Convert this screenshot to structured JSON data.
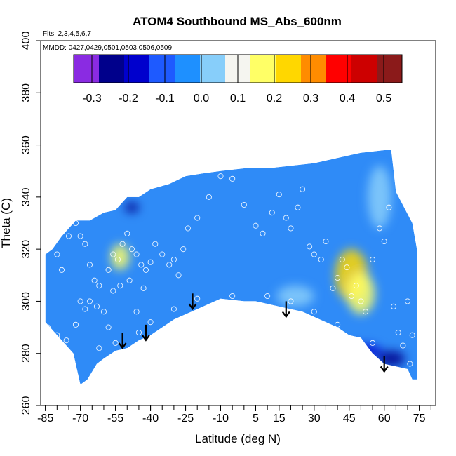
{
  "chart_data": {
    "type": "heatmap",
    "title": "ATOM4 Southbound MS_Abs_600nm",
    "notes": [
      "Flts: 2,3,4,5,6,7",
      "MMDD: 0427,0429,0501,0503,0506,0509"
    ],
    "xlabel": "Latitude (deg N)",
    "ylabel": "Theta (C)",
    "xlim": [
      -87,
      82
    ],
    "ylim": [
      260,
      400
    ],
    "x_ticks": [
      -85,
      -70,
      -55,
      -40,
      -25,
      -10,
      5,
      15,
      30,
      45,
      60,
      75
    ],
    "y_ticks": [
      260,
      280,
      300,
      320,
      340,
      360,
      380,
      400
    ],
    "colorbar": {
      "range": [
        -0.35,
        0.55
      ],
      "ticks": [
        -0.3,
        -0.2,
        -0.1,
        0.0,
        0.1,
        0.2,
        0.3,
        0.4,
        0.5
      ],
      "tick_labels": [
        "-0.3",
        "-0.2",
        "-0.1",
        "0.0",
        "0.1",
        "0.2",
        "0.3",
        "0.4",
        "0.5"
      ],
      "colors": [
        "#8a2be2",
        "#00008b",
        "#0000cd",
        "#1e5aff",
        "#1e90ff",
        "#87cefa",
        "#f5f5f0",
        "#ffff66",
        "#ffd700",
        "#ff8c00",
        "#ff0000",
        "#cd0000",
        "#8b1a1a"
      ]
    },
    "field_background": "#2f8bf7",
    "upper_boundary": [
      [
        -85,
        318
      ],
      [
        -82,
        320
      ],
      [
        -78,
        325
      ],
      [
        -72,
        331
      ],
      [
        -66,
        331
      ],
      [
        -60,
        334
      ],
      [
        -55,
        335
      ],
      [
        -50,
        340
      ],
      [
        -45,
        340
      ],
      [
        -40,
        343
      ],
      [
        -32,
        345
      ],
      [
        -25,
        348
      ],
      [
        -18,
        349
      ],
      [
        -10,
        350
      ],
      [
        0,
        351
      ],
      [
        10,
        351
      ],
      [
        20,
        352
      ],
      [
        30,
        353
      ],
      [
        40,
        355
      ],
      [
        50,
        357
      ],
      [
        60,
        358
      ],
      [
        63,
        358
      ],
      [
        65,
        342
      ],
      [
        72,
        330
      ],
      [
        74,
        320
      ]
    ],
    "lower_boundary": [
      [
        74,
        270
      ],
      [
        72,
        270
      ],
      [
        70,
        274
      ],
      [
        65,
        275
      ],
      [
        60,
        276
      ],
      [
        55,
        280
      ],
      [
        50,
        286
      ],
      [
        45,
        287
      ],
      [
        40,
        290
      ],
      [
        35,
        292
      ],
      [
        30,
        294
      ],
      [
        25,
        296
      ],
      [
        20,
        297
      ],
      [
        15,
        298
      ],
      [
        10,
        299
      ],
      [
        5,
        300
      ],
      [
        0,
        300
      ],
      [
        -10,
        301
      ],
      [
        -15,
        299
      ],
      [
        -20,
        297
      ],
      [
        -25,
        295
      ],
      [
        -30,
        293
      ],
      [
        -35,
        290
      ],
      [
        -40,
        287
      ],
      [
        -45,
        285
      ],
      [
        -50,
        282
      ],
      [
        -55,
        281
      ],
      [
        -60,
        278
      ],
      [
        -63,
        276
      ],
      [
        -67,
        270
      ],
      [
        -70,
        268
      ],
      [
        -73,
        280
      ],
      [
        -78,
        285
      ],
      [
        -85,
        292
      ]
    ],
    "features": [
      {
        "lat": 46,
        "theta": 310,
        "value": 0.25,
        "radius_lat": 7,
        "radius_theta": 10
      },
      {
        "lat": 50,
        "theta": 303,
        "value": 0.14,
        "radius_lat": 6,
        "radius_theta": 8
      },
      {
        "lat": -53,
        "theta": 317,
        "value": 0.18,
        "radius_lat": 4,
        "radius_theta": 5
      },
      {
        "lat": 22,
        "theta": 302,
        "value": 0.04,
        "radius_lat": 8,
        "radius_theta": 4
      },
      {
        "lat": -48,
        "theta": 336,
        "value": -0.25,
        "radius_lat": 3,
        "radius_theta": 2
      },
      {
        "lat": 50,
        "theta": 281,
        "value": -0.18,
        "radius_lat": 9,
        "radius_theta": 2.5
      },
      {
        "lat": 63,
        "theta": 278,
        "value": -0.22,
        "radius_lat": 6,
        "radius_theta": 3
      },
      {
        "lat": 58,
        "theta": 340,
        "value": 0.03,
        "radius_lat": 5,
        "radius_theta": 12
      }
    ],
    "observations": [
      [
        -80,
        318
      ],
      [
        -78,
        312
      ],
      [
        -75,
        325
      ],
      [
        -72,
        330
      ],
      [
        -70,
        325
      ],
      [
        -68,
        322
      ],
      [
        -66,
        314
      ],
      [
        -64,
        308
      ],
      [
        -62,
        306
      ],
      [
        -70,
        300
      ],
      [
        -68,
        297
      ],
      [
        -66,
        300
      ],
      [
        -63,
        298
      ],
      [
        -60,
        296
      ],
      [
        -58,
        312
      ],
      [
        -56,
        318
      ],
      [
        -54,
        316
      ],
      [
        -52,
        322
      ],
      [
        -50,
        326
      ],
      [
        -48,
        320
      ],
      [
        -46,
        318
      ],
      [
        -44,
        314
      ],
      [
        -42,
        312
      ],
      [
        -40,
        315
      ],
      [
        -38,
        322
      ],
      [
        -35,
        318
      ],
      [
        -32,
        314
      ],
      [
        -30,
        316
      ],
      [
        -28,
        310
      ],
      [
        -26,
        320
      ],
      [
        -24,
        328
      ],
      [
        -20,
        332
      ],
      [
        -15,
        340
      ],
      [
        -10,
        348
      ],
      [
        -5,
        347
      ],
      [
        0,
        337
      ],
      [
        5,
        329
      ],
      [
        8,
        326
      ],
      [
        12,
        334
      ],
      [
        15,
        341
      ],
      [
        18,
        332
      ],
      [
        20,
        328
      ],
      [
        23,
        336
      ],
      [
        25,
        343
      ],
      [
        28,
        321
      ],
      [
        30,
        318
      ],
      [
        33,
        316
      ],
      [
        35,
        323
      ],
      [
        38,
        305
      ],
      [
        40,
        309
      ],
      [
        42,
        316
      ],
      [
        44,
        313
      ],
      [
        46,
        302
      ],
      [
        48,
        306
      ],
      [
        50,
        300
      ],
      [
        52,
        296
      ],
      [
        55,
        316
      ],
      [
        58,
        328
      ],
      [
        60,
        323
      ],
      [
        62,
        336
      ],
      [
        64,
        298
      ],
      [
        66,
        288
      ],
      [
        68,
        283
      ],
      [
        70,
        300
      ],
      [
        72,
        287
      ],
      [
        71,
        276
      ],
      [
        -62,
        282
      ],
      [
        -58,
        290
      ],
      [
        -55,
        284
      ],
      [
        -50,
        281
      ],
      [
        -45,
        288
      ],
      [
        -40,
        292
      ],
      [
        -30,
        297
      ],
      [
        -20,
        301
      ],
      [
        -5,
        302
      ],
      [
        10,
        302
      ],
      [
        20,
        300
      ],
      [
        30,
        296
      ],
      [
        40,
        291
      ],
      [
        45,
        285
      ],
      [
        55,
        284
      ],
      [
        -84,
        290
      ],
      [
        -80,
        287
      ],
      [
        -76,
        285
      ],
      [
        -72,
        291
      ],
      [
        -66,
        268
      ],
      [
        -60,
        276
      ],
      [
        -56,
        304
      ],
      [
        -53,
        306
      ],
      [
        -49,
        308
      ],
      [
        -46,
        296
      ],
      [
        -43,
        305
      ]
    ],
    "arrows_lat": [
      -52,
      -42,
      -22,
      18,
      60
    ],
    "arrow_theta_top": [
      {
        "lat": -52,
        "theta": 288
      },
      {
        "lat": -42,
        "theta": 291
      },
      {
        "lat": -22,
        "theta": 303
      },
      {
        "lat": 18,
        "theta": 300
      },
      {
        "lat": 60,
        "theta": 279
      }
    ]
  }
}
